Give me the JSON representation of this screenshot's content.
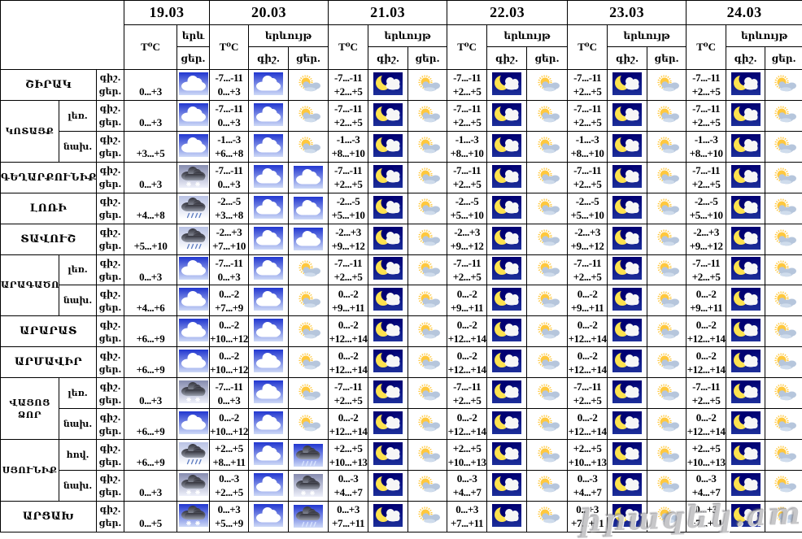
{
  "header": {
    "dates": [
      "19.03",
      "20.03",
      "21.03",
      "22.03",
      "23.03",
      "24.03"
    ],
    "temp_label": "T⁰C",
    "phenomenon_label": "երևույթ",
    "phenomenon_label_short": "երև",
    "night_abbr": "գիշ.",
    "day_abbr": "ցեր."
  },
  "watermark": "իրազեկ.am",
  "colors": {
    "moon_yellow": "#fde24f",
    "sun_yellow": "#ffc83d",
    "day_cloud_gray": "#b6c6dc",
    "rain_blue": "#5b7bc0",
    "rain_light": "#dbe6ff",
    "gradients": {
      "gBlue": [
        "#2136d0",
        "#cdd9f7"
      ],
      "gNavy": [
        "#000072",
        "#1c2f9a"
      ],
      "gSlate": [
        "#868cb0",
        "#eef0fa"
      ],
      "gLight": [
        "#b9c2e4",
        "#ffffff"
      ],
      "gDark": [
        "#33333c",
        "#9aa0ae"
      ]
    }
  },
  "regions": [
    {
      "region": "ՇԻՐԱԿ",
      "zone": null,
      "days": [
        {
          "day_temp": "0...+3",
          "day_icon": "cloud"
        },
        {
          "night_temp": "-7...-11",
          "day_temp": "0...+3",
          "night_icon": "cloud",
          "day_icon": "sun-cloud"
        },
        {
          "night_temp": "-7...-11",
          "day_temp": "+2...+5",
          "night_icon": "moon-cloud",
          "day_icon": "sun-cloud"
        },
        {
          "night_temp": "-7...-11",
          "day_temp": "+2...+5",
          "night_icon": "moon-cloud",
          "day_icon": "sun-cloud"
        },
        {
          "night_temp": "-7...-11",
          "day_temp": "+2...+5",
          "night_icon": "moon-cloud",
          "day_icon": "sun-cloud"
        },
        {
          "night_temp": "-7...-11",
          "day_temp": "+2...+5",
          "night_icon": "moon-cloud",
          "day_icon": "sun-cloud"
        }
      ]
    },
    {
      "region": "ԿՈՏԱՅՔ",
      "zone": "լեռ.",
      "days": [
        {
          "day_temp": "0...+3",
          "day_icon": "cloud"
        },
        {
          "night_temp": "-7...-11",
          "day_temp": "0...+3",
          "night_icon": "cloud",
          "day_icon": "sun-cloud"
        },
        {
          "night_temp": "-7...-11",
          "day_temp": "+2...+5",
          "night_icon": "moon-cloud",
          "day_icon": "sun-cloud"
        },
        {
          "night_temp": "-7...-11",
          "day_temp": "+2...+5",
          "night_icon": "moon-cloud",
          "day_icon": "sun-cloud"
        },
        {
          "night_temp": "-7...-11",
          "day_temp": "+2...+5",
          "night_icon": "moon-cloud",
          "day_icon": "sun-cloud"
        },
        {
          "night_temp": "-7...-11",
          "day_temp": "+2...+5",
          "night_icon": "moon-cloud",
          "day_icon": "sun-cloud"
        }
      ]
    },
    {
      "region": "ԿՈՏԱՅՔ",
      "zone": "նախ.",
      "days": [
        {
          "day_temp": "+3...+5",
          "day_icon": "cloud"
        },
        {
          "night_temp": "-1...-3",
          "day_temp": "+6...+8",
          "night_icon": "cloud",
          "day_icon": "sun-cloud"
        },
        {
          "night_temp": "-1...-3",
          "day_temp": "+8...+10",
          "night_icon": "moon-cloud",
          "day_icon": "sun-cloud"
        },
        {
          "night_temp": "-1...-3",
          "day_temp": "+8...+10",
          "night_icon": "moon-cloud",
          "day_icon": "sun-cloud"
        },
        {
          "night_temp": "-1...-3",
          "day_temp": "+8...+10",
          "night_icon": "moon-cloud",
          "day_icon": "sun-cloud"
        },
        {
          "night_temp": "-1...-3",
          "day_temp": "+8...+10",
          "night_icon": "moon-cloud",
          "day_icon": "sun-cloud"
        }
      ]
    },
    {
      "region": "ԳԵՂԱՐՔՈՒՆԻՔ",
      "zone": null,
      "days": [
        {
          "day_temp": "0...+3",
          "day_icon": "snow-cloud"
        },
        {
          "night_temp": "-7...-11",
          "day_temp": "0...+3",
          "night_icon": "cloud",
          "day_icon": "cloud"
        },
        {
          "night_temp": "-7...-11",
          "day_temp": "+2...+5",
          "night_icon": "moon-cloud",
          "day_icon": "sun-cloud"
        },
        {
          "night_temp": "-7...-11",
          "day_temp": "+2...+5",
          "night_icon": "moon-cloud",
          "day_icon": "sun-cloud"
        },
        {
          "night_temp": "-7...-11",
          "day_temp": "+2...+5",
          "night_icon": "moon-cloud",
          "day_icon": "sun-cloud"
        },
        {
          "night_temp": "-7...-11",
          "day_temp": "+2...+5",
          "night_icon": "moon-cloud",
          "day_icon": "sun-cloud"
        }
      ]
    },
    {
      "region": "ԼՈՌԻ",
      "zone": null,
      "days": [
        {
          "day_temp": "+4...+8",
          "day_icon": "rain-cloud"
        },
        {
          "night_temp": "-2...-5",
          "day_temp": "+3...+8",
          "night_icon": "cloud",
          "day_icon": "cloud"
        },
        {
          "night_temp": "-2...-5",
          "day_temp": "+5...+10",
          "night_icon": "moon-cloud",
          "day_icon": "sun-cloud"
        },
        {
          "night_temp": "-2...-5",
          "day_temp": "+5...+10",
          "night_icon": "moon-cloud",
          "day_icon": "sun-cloud"
        },
        {
          "night_temp": "-2...-5",
          "day_temp": "+5...+10",
          "night_icon": "moon-cloud",
          "day_icon": "sun-cloud"
        },
        {
          "night_temp": "-2...-5",
          "day_temp": "+5...+10",
          "night_icon": "moon-cloud",
          "day_icon": "sun-cloud"
        }
      ]
    },
    {
      "region": "ՏԱՎՈՒՇ",
      "zone": null,
      "days": [
        {
          "day_temp": "+5...+10",
          "day_icon": "rain-cloud"
        },
        {
          "night_temp": "-2...+3",
          "day_temp": "+7...+10",
          "night_icon": "cloud",
          "day_icon": "cloud"
        },
        {
          "night_temp": "-2...+3",
          "day_temp": "+9...+12",
          "night_icon": "moon-cloud",
          "day_icon": "sun-cloud"
        },
        {
          "night_temp": "-2...+3",
          "day_temp": "+9...+12",
          "night_icon": "moon-cloud",
          "day_icon": "sun-cloud"
        },
        {
          "night_temp": "-2...+3",
          "day_temp": "+9...+12",
          "night_icon": "moon-cloud",
          "day_icon": "sun-cloud"
        },
        {
          "night_temp": "-2...+3",
          "day_temp": "+9...+12",
          "night_icon": "moon-cloud",
          "day_icon": "sun-cloud"
        }
      ]
    },
    {
      "region": "ԱՐԱԳԱԾՈՏՆ",
      "zone": "լեռ.",
      "days": [
        {
          "day_temp": "0...+3",
          "day_icon": "cloud"
        },
        {
          "night_temp": "-7...-11",
          "day_temp": "0...+3",
          "night_icon": "cloud",
          "day_icon": "sun-cloud"
        },
        {
          "night_temp": "-7...-11",
          "day_temp": "+2...+5",
          "night_icon": "moon-cloud",
          "day_icon": "sun-cloud"
        },
        {
          "night_temp": "-7...-11",
          "day_temp": "+2...+5",
          "night_icon": "moon-cloud",
          "day_icon": "sun-cloud"
        },
        {
          "night_temp": "-7...-11",
          "day_temp": "+2...+5",
          "night_icon": "moon-cloud",
          "day_icon": "sun-cloud"
        },
        {
          "night_temp": "-7...-11",
          "day_temp": "+2...+5",
          "night_icon": "moon-cloud",
          "day_icon": "sun-cloud"
        }
      ]
    },
    {
      "region": "ԱՐԱԳԱԾՈՏՆ",
      "zone": "նախ.",
      "days": [
        {
          "day_temp": "+4...+6",
          "day_icon": "cloud"
        },
        {
          "night_temp": "0...-2",
          "day_temp": "+7...+9",
          "night_icon": "cloud",
          "day_icon": "sun-cloud"
        },
        {
          "night_temp": "0...-2",
          "day_temp": "+9...+11",
          "night_icon": "moon-cloud",
          "day_icon": "sun-cloud"
        },
        {
          "night_temp": "0...-2",
          "day_temp": "+9...+11",
          "night_icon": "moon-cloud",
          "day_icon": "sun-cloud"
        },
        {
          "night_temp": "0...-2",
          "day_temp": "+9...+11",
          "night_icon": "moon-cloud",
          "day_icon": "sun-cloud"
        },
        {
          "night_temp": "0...-2",
          "day_temp": "+9...+11",
          "night_icon": "moon-cloud",
          "day_icon": "sun-cloud"
        }
      ]
    },
    {
      "region": "ԱՐԱՐԱՏ",
      "zone": null,
      "days": [
        {
          "day_temp": "+6...+9",
          "day_icon": "cloud"
        },
        {
          "night_temp": "0...-2",
          "day_temp": "+10...+12",
          "night_icon": "cloud",
          "day_icon": "sun-cloud"
        },
        {
          "night_temp": "0...-2",
          "day_temp": "+12...+14",
          "night_icon": "moon-cloud",
          "day_icon": "sun-cloud"
        },
        {
          "night_temp": "0...-2",
          "day_temp": "+12...+14",
          "night_icon": "moon-cloud",
          "day_icon": "sun-cloud"
        },
        {
          "night_temp": "0...-2",
          "day_temp": "+12...+14",
          "night_icon": "moon-cloud",
          "day_icon": "sun-cloud"
        },
        {
          "night_temp": "0...-2",
          "day_temp": "+12...+14",
          "night_icon": "moon-cloud",
          "day_icon": "sun-cloud"
        }
      ]
    },
    {
      "region": "ԱՐՄԱՎԻՐ",
      "zone": null,
      "days": [
        {
          "day_temp": "+6...+9",
          "day_icon": "cloud"
        },
        {
          "night_temp": "0...-2",
          "day_temp": "+10...+12",
          "night_icon": "cloud",
          "day_icon": "sun-cloud"
        },
        {
          "night_temp": "0...-2",
          "day_temp": "+12...+14",
          "night_icon": "moon-cloud",
          "day_icon": "sun-cloud"
        },
        {
          "night_temp": "0...-2",
          "day_temp": "+12...+14",
          "night_icon": "moon-cloud",
          "day_icon": "sun-cloud"
        },
        {
          "night_temp": "0...-2",
          "day_temp": "+12...+14",
          "night_icon": "moon-cloud",
          "day_icon": "sun-cloud"
        },
        {
          "night_temp": "0...-2",
          "day_temp": "+12...+14",
          "night_icon": "moon-cloud",
          "day_icon": "sun-cloud"
        }
      ]
    },
    {
      "region": "ՎԱՅՈՑ ՁՈՐ",
      "zone": "լեռ.",
      "days": [
        {
          "day_temp": "0...+3",
          "day_icon": "snow-cloud"
        },
        {
          "night_temp": "-7...-11",
          "day_temp": "0...+3",
          "night_icon": "cloud",
          "day_icon": "sun-cloud"
        },
        {
          "night_temp": "-7...-11",
          "day_temp": "+2...+5",
          "night_icon": "moon-cloud",
          "day_icon": "sun-cloud"
        },
        {
          "night_temp": "-7...-11",
          "day_temp": "+2...+5",
          "night_icon": "moon-cloud",
          "day_icon": "sun-cloud"
        },
        {
          "night_temp": "-7...-11",
          "day_temp": "+2...+5",
          "night_icon": "moon-cloud",
          "day_icon": "sun-cloud"
        },
        {
          "night_temp": "-7...-11",
          "day_temp": "+2...+5",
          "night_icon": "moon-cloud",
          "day_icon": "sun-cloud"
        }
      ]
    },
    {
      "region": "ՎԱՅՈՑ ՁՈՐ",
      "zone": "նախ.",
      "days": [
        {
          "day_temp": "+6...+9",
          "day_icon": "cloud"
        },
        {
          "night_temp": "0...-2",
          "day_temp": "+10...+12",
          "night_icon": "cloud",
          "day_icon": "sun-cloud"
        },
        {
          "night_temp": "0...-2",
          "day_temp": "+12...+14",
          "night_icon": "moon-cloud",
          "day_icon": "sun-cloud"
        },
        {
          "night_temp": "0...-2",
          "day_temp": "+12...+14",
          "night_icon": "moon-cloud",
          "day_icon": "sun-cloud"
        },
        {
          "night_temp": "0...-2",
          "day_temp": "+12...+14",
          "night_icon": "moon-cloud",
          "day_icon": "sun-cloud"
        },
        {
          "night_temp": "0...-2",
          "day_temp": "+12...+14",
          "night_icon": "moon-cloud",
          "day_icon": "sun-cloud"
        }
      ]
    },
    {
      "region": "ՍՅՈՒՆԻՔ",
      "zone": "հով.",
      "days": [
        {
          "day_temp": "+6...+9",
          "day_icon": "rain-cloud"
        },
        {
          "night_temp": "+2...+5",
          "day_temp": "+8...+11",
          "night_icon": "cloud",
          "day_icon": "rain-cloud-blue"
        },
        {
          "night_temp": "+2...+5",
          "day_temp": "+10...+13",
          "night_icon": "moon-cloud",
          "day_icon": "sun-cloud"
        },
        {
          "night_temp": "+2...+5",
          "day_temp": "+10...+13",
          "night_icon": "moon-cloud",
          "day_icon": "sun-cloud"
        },
        {
          "night_temp": "+2...+5",
          "day_temp": "+10...+13",
          "night_icon": "moon-cloud",
          "day_icon": "sun-cloud"
        },
        {
          "night_temp": "+2...+5",
          "day_temp": "+10...+13",
          "night_icon": "moon-cloud",
          "day_icon": "sun-cloud"
        }
      ]
    },
    {
      "region": "ՍՅՈՒՆԻՔ",
      "zone": "նախ.",
      "days": [
        {
          "day_temp": "0...+3",
          "day_icon": "snow-cloud"
        },
        {
          "night_temp": "0...-3",
          "day_temp": "+2...+5",
          "night_icon": "cloud",
          "day_icon": "snow-cloud"
        },
        {
          "night_temp": "0...-3",
          "day_temp": "+4...+7",
          "night_icon": "moon-cloud",
          "day_icon": "sun-cloud"
        },
        {
          "night_temp": "0...-3",
          "day_temp": "+4...+7",
          "night_icon": "moon-cloud",
          "day_icon": "sun-cloud"
        },
        {
          "night_temp": "0...-3",
          "day_temp": "+4...+7",
          "night_icon": "moon-cloud",
          "day_icon": "sun-cloud"
        },
        {
          "night_temp": "0...-3",
          "day_temp": "+4...+7",
          "night_icon": "moon-cloud",
          "day_icon": "sun-cloud"
        }
      ]
    },
    {
      "region": "ԱՐՑԱԽ",
      "zone": null,
      "days": [
        {
          "day_temp": "0...+5",
          "day_icon": "snow-cloud-blue"
        },
        {
          "night_temp": "0...+3",
          "day_temp": "+5...+9",
          "night_icon": "cloud",
          "day_icon": "rain-cloud-blue"
        },
        {
          "night_temp": "0...+3",
          "day_temp": "+7...+11",
          "night_icon": "moon-cloud",
          "day_icon": "sun-cloud"
        },
        {
          "night_temp": "0...+3",
          "day_temp": "+7...+11",
          "night_icon": "moon-cloud",
          "day_icon": "sun-cloud"
        },
        {
          "night_temp": "0...+3",
          "day_temp": "+7...+11",
          "night_icon": "moon-cloud",
          "day_icon": "sun-cloud"
        },
        {
          "night_temp": "0...+3",
          "day_temp": "+7...+11",
          "night_icon": "moon-cloud",
          "day_icon": "sun-cloud"
        }
      ]
    }
  ]
}
